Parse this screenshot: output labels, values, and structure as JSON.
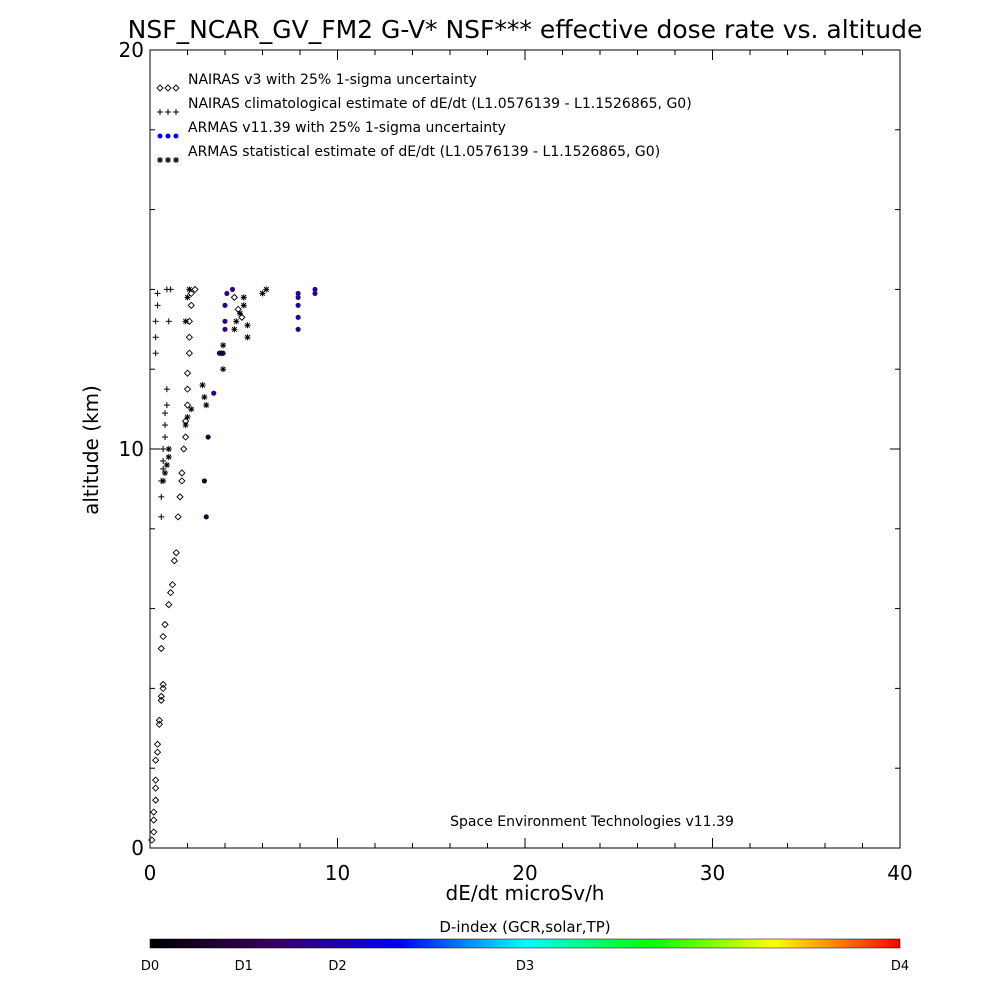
{
  "chart_data": {
    "type": "scatter",
    "title": "NSF_NCAR_GV_FM2 G-V* NSF*** effective dose rate vs. altitude",
    "xlabel": "dE/dt microSv/h",
    "ylabel": "altitude (km)",
    "xlim": [
      0,
      40
    ],
    "ylim": [
      0,
      20
    ],
    "x_ticks": [
      "0",
      "10",
      "20",
      "30",
      "40"
    ],
    "y_ticks": [
      "0",
      "10",
      "20"
    ],
    "legend_placement": "top-left",
    "annotation": "Space Environment Technologies v11.39",
    "colorbar": {
      "title": "D-index (GCR,solar,TP)",
      "labels": [
        "D0",
        "D1",
        "D2",
        "D3",
        "D4"
      ],
      "label_positions": [
        0,
        0.125,
        0.25,
        0.5,
        1.0
      ],
      "colors": [
        "#000000",
        "#3a0060",
        "#0000ff",
        "#00ffff",
        "#00ff00",
        "#ffff00",
        "#ff0000"
      ]
    },
    "series": [
      {
        "name": "NAIRAS v3 with 25% 1-sigma uncertainty",
        "marker": "diamond",
        "color": "#000000",
        "points": [
          [
            0.1,
            0.2
          ],
          [
            0.2,
            0.4
          ],
          [
            0.2,
            0.7
          ],
          [
            0.2,
            0.9
          ],
          [
            0.3,
            1.2
          ],
          [
            0.3,
            1.5
          ],
          [
            0.3,
            1.7
          ],
          [
            0.3,
            2.2
          ],
          [
            0.4,
            2.4
          ],
          [
            0.4,
            2.6
          ],
          [
            0.5,
            3.1
          ],
          [
            0.5,
            3.2
          ],
          [
            0.6,
            3.7
          ],
          [
            0.6,
            3.8
          ],
          [
            0.7,
            4.0
          ],
          [
            0.7,
            4.1
          ],
          [
            0.6,
            5.0
          ],
          [
            0.7,
            5.3
          ],
          [
            0.8,
            5.6
          ],
          [
            1.0,
            6.1
          ],
          [
            1.1,
            6.4
          ],
          [
            1.2,
            6.6
          ],
          [
            1.3,
            7.2
          ],
          [
            1.4,
            7.4
          ],
          [
            1.5,
            8.3
          ],
          [
            1.6,
            8.8
          ],
          [
            1.7,
            9.2
          ],
          [
            1.7,
            9.4
          ],
          [
            1.8,
            10.0
          ],
          [
            1.9,
            10.3
          ],
          [
            1.9,
            10.7
          ],
          [
            2.0,
            11.1
          ],
          [
            2.0,
            11.5
          ],
          [
            2.0,
            11.9
          ],
          [
            2.1,
            12.4
          ],
          [
            2.1,
            12.8
          ],
          [
            2.1,
            13.2
          ],
          [
            2.2,
            13.6
          ],
          [
            2.2,
            13.9
          ],
          [
            2.4,
            14.0
          ],
          [
            4.5,
            13.8
          ],
          [
            4.7,
            13.5
          ],
          [
            4.9,
            13.3
          ]
        ]
      },
      {
        "name": "NAIRAS climatological estimate of dE/dt (L1.0576139 - L1.1526865, G0)",
        "marker": "plus",
        "color": "#000000",
        "points": [
          [
            0.6,
            8.3
          ],
          [
            0.6,
            8.8
          ],
          [
            0.6,
            9.2
          ],
          [
            0.7,
            9.5
          ],
          [
            0.7,
            9.7
          ],
          [
            0.7,
            10.0
          ],
          [
            0.8,
            10.3
          ],
          [
            0.8,
            10.6
          ],
          [
            0.8,
            10.9
          ],
          [
            0.9,
            11.1
          ],
          [
            0.9,
            11.5
          ],
          [
            0.3,
            12.4
          ],
          [
            0.3,
            12.8
          ],
          [
            0.3,
            13.2
          ],
          [
            0.4,
            13.6
          ],
          [
            0.4,
            13.9
          ],
          [
            0.9,
            14.0
          ],
          [
            1.0,
            13.2
          ],
          [
            1.1,
            14.0
          ]
        ]
      },
      {
        "name": "ARMAS v11.39 with 25% 1-sigma uncertainty",
        "marker": "dot",
        "color": "#0000ff",
        "points": [
          [
            3.0,
            8.3
          ],
          [
            2.9,
            9.2
          ],
          [
            3.1,
            10.3
          ],
          [
            3.4,
            11.4
          ],
          [
            3.7,
            12.4
          ],
          [
            3.9,
            12.4
          ],
          [
            4.0,
            13.0
          ],
          [
            4.0,
            13.2
          ],
          [
            4.0,
            13.6
          ],
          [
            4.1,
            13.9
          ],
          [
            4.4,
            14.0
          ],
          [
            7.9,
            13.0
          ],
          [
            7.9,
            13.3
          ],
          [
            7.9,
            13.6
          ],
          [
            7.9,
            13.8
          ],
          [
            7.9,
            13.9
          ],
          [
            8.8,
            14.0
          ],
          [
            8.8,
            13.9
          ]
        ],
        "d_index": [
          0.1,
          0.05,
          0.1,
          0.2,
          0.2,
          0.2,
          0.2,
          0.2,
          0.2,
          0.2,
          0.2,
          0.22,
          0.22,
          0.22,
          0.22,
          0.22,
          0.22,
          0.22
        ]
      },
      {
        "name": "ARMAS statistical estimate of dE/dt (L1.0576139 - L1.1526865, G0)",
        "marker": "asterisk",
        "color": "#000000",
        "points": [
          [
            0.7,
            9.2
          ],
          [
            0.8,
            9.4
          ],
          [
            0.9,
            9.6
          ],
          [
            1.0,
            9.8
          ],
          [
            1.0,
            10.0
          ],
          [
            1.9,
            10.6
          ],
          [
            2.0,
            10.8
          ],
          [
            2.2,
            11.0
          ],
          [
            2.9,
            11.3
          ],
          [
            2.8,
            11.6
          ],
          [
            3.0,
            11.1
          ],
          [
            3.9,
            12.0
          ],
          [
            3.8,
            12.4
          ],
          [
            3.9,
            12.6
          ],
          [
            4.5,
            13.0
          ],
          [
            4.6,
            13.2
          ],
          [
            4.8,
            13.4
          ],
          [
            5.0,
            13.6
          ],
          [
            5.0,
            13.8
          ],
          [
            5.2,
            13.1
          ],
          [
            5.2,
            12.8
          ],
          [
            6.0,
            13.9
          ],
          [
            6.2,
            14.0
          ],
          [
            1.9,
            13.2
          ],
          [
            2.0,
            13.8
          ],
          [
            2.1,
            14.0
          ]
        ]
      }
    ]
  }
}
